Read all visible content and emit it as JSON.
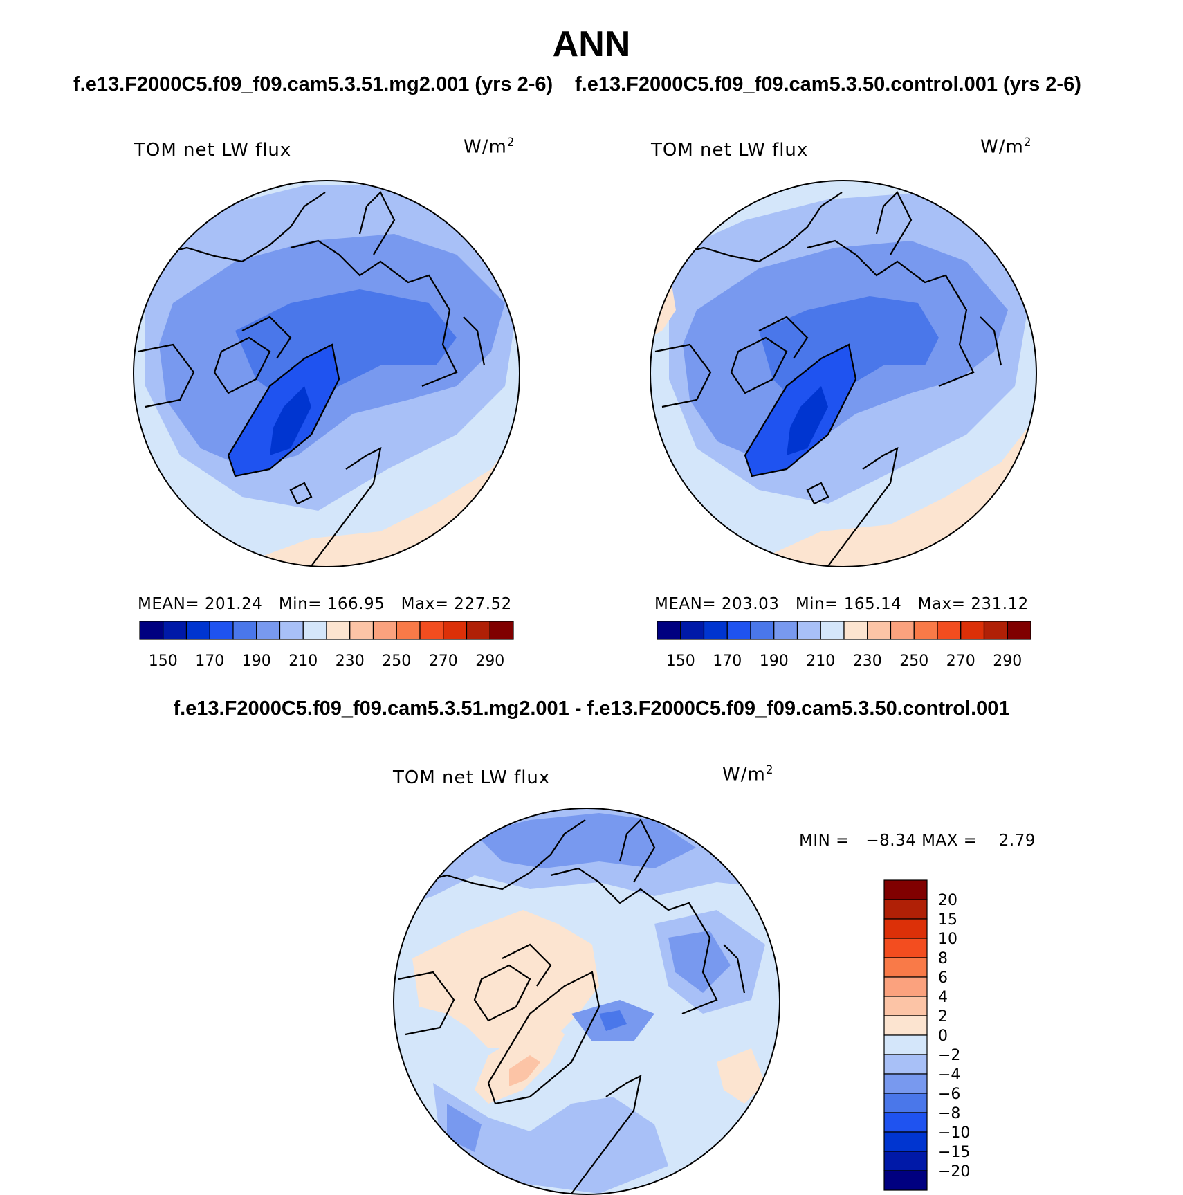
{
  "title": "ANN",
  "left_panel": {
    "subtitle": "f.e13.F2000C5.f09_f09.cam5.3.51.mg2.001 (yrs 2-6)",
    "variable": "TOM net LW flux",
    "units_base": "W/m",
    "units_exp": "2",
    "mean_label": "MEAN=",
    "mean": "201.24",
    "min_label": "Min=",
    "min": "166.95",
    "max_label": "Max=",
    "max": "227.52"
  },
  "right_panel": {
    "subtitle": "f.e13.F2000C5.f09_f09.cam5.3.50.control.001 (yrs 2-6)",
    "variable": "TOM net LW flux",
    "units_base": "W/m",
    "units_exp": "2",
    "mean_label": "MEAN=",
    "mean": "203.03",
    "min_label": "Min=",
    "min": "165.14",
    "max_label": "Max=",
    "max": "231.12"
  },
  "diff_panel": {
    "title": "f.e13.F2000C5.f09_f09.cam5.3.51.mg2.001 - f.e13.F2000C5.f09_f09.cam5.3.50.control.001",
    "variable": "TOM net LW flux",
    "units_base": "W/m",
    "units_exp": "2",
    "minmax_text": "MIN =   −8.34 MAX =    2.79"
  },
  "colorbar_abs": {
    "colors": [
      "#000080",
      "#0019a8",
      "#0035d0",
      "#1f53f0",
      "#4a77ea",
      "#7899ef",
      "#a8c0f7",
      "#d4e6fa",
      "#fce4d0",
      "#fcc4a6",
      "#fba27e",
      "#f97a48",
      "#f34d1f",
      "#dc3008",
      "#b02006",
      "#800000"
    ],
    "tick_labels": [
      "150",
      "170",
      "190",
      "210",
      "230",
      "250",
      "270",
      "290"
    ]
  },
  "colorbar_diff": {
    "colors": [
      "#800000",
      "#b02006",
      "#dc3008",
      "#f34d1f",
      "#f97a48",
      "#fba27e",
      "#fcc4a6",
      "#fce4d0",
      "#d4e6fa",
      "#a8c0f7",
      "#7899ef",
      "#4a77ea",
      "#1f53f0",
      "#0035d0",
      "#0019a8",
      "#000080"
    ],
    "tick_labels": [
      "20",
      "15",
      "10",
      "8",
      "6",
      "4",
      "2",
      "0",
      "−2",
      "−4",
      "−6",
      "−8",
      "−10",
      "−15",
      "−20"
    ]
  }
}
